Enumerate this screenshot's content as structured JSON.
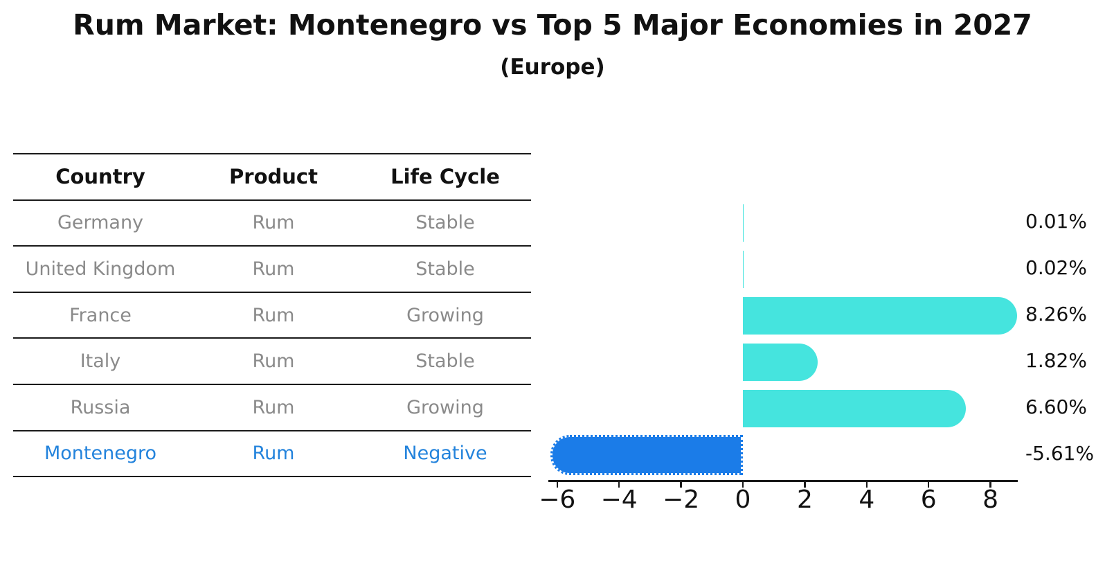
{
  "header": {
    "title": "Rum Market: Montenegro vs Top 5 Major Economies in 2027",
    "subtitle": "(Europe)"
  },
  "table": {
    "headers": [
      "Country",
      "Product",
      "Life Cycle"
    ],
    "rows": [
      {
        "country": "Germany",
        "product": "Rum",
        "life_cycle": "Stable",
        "highlight": false
      },
      {
        "country": "United Kingdom",
        "product": "Rum",
        "life_cycle": "Stable",
        "highlight": false
      },
      {
        "country": "France",
        "product": "Rum",
        "life_cycle": "Growing",
        "highlight": false
      },
      {
        "country": "Italy",
        "product": "Rum",
        "life_cycle": "Stable",
        "highlight": false
      },
      {
        "country": "Russia",
        "product": "Rum",
        "life_cycle": "Growing",
        "highlight": false
      },
      {
        "country": "Montenegro",
        "product": "Rum",
        "life_cycle": "Negative",
        "highlight": true
      }
    ]
  },
  "chart_data": {
    "type": "bar",
    "orientation": "horizontal",
    "title": "Rum Market: Montenegro vs Top 5 Major Economies in 2027",
    "subtitle": "(Europe)",
    "categories": [
      "Germany",
      "United Kingdom",
      "France",
      "Italy",
      "Russia",
      "Montenegro"
    ],
    "values": [
      0.01,
      0.02,
      8.26,
      1.82,
      6.6,
      -5.61
    ],
    "value_labels": [
      "0.01%",
      "0.02%",
      "8.26%",
      "1.82%",
      "6.60%",
      "-5.61%"
    ],
    "x_ticks": [
      -6,
      -4,
      -2,
      0,
      2,
      4,
      6,
      8
    ],
    "x_tick_labels": [
      "−6",
      "−4",
      "−2",
      "0",
      "2",
      "4",
      "6",
      "8"
    ],
    "xlim": [
      -6.29,
      8.88
    ],
    "grid": false,
    "legend": false,
    "positive_bar_color": "#45e4de",
    "negative_bar_color": "#1b7ce8",
    "negative_bar_edge_style": "dotted",
    "highlight_text_color": "#2383dc"
  }
}
